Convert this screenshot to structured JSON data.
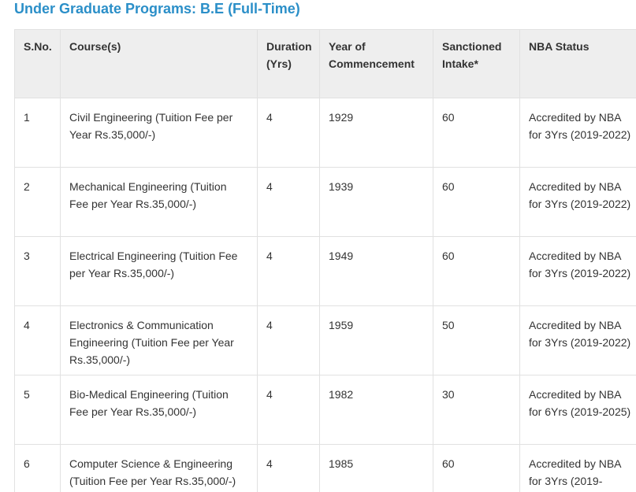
{
  "page": {
    "title": "Under Graduate Programs: B.E (Full-Time)"
  },
  "table": {
    "headers": [
      "S.No.",
      "Course(s)",
      "Duration (Yrs)",
      "Year of Commencement",
      "Sanctioned Intake*",
      "NBA Status"
    ],
    "rows": [
      {
        "sno": "1",
        "course": "Civil Engineering (Tuition Fee per Year Rs.35,000/-)",
        "duration": "4",
        "year": "1929",
        "intake": "60",
        "nba": "Accredited by NBA for 3Yrs (2019-2022)"
      },
      {
        "sno": "2",
        "course": "Mechanical Engineering (Tuition Fee per Year Rs.35,000/-)",
        "duration": "4",
        "year": "1939",
        "intake": "60",
        "nba": "Accredited by NBA for 3Yrs (2019-2022)"
      },
      {
        "sno": "3",
        "course": "Electrical Engineering (Tuition Fee per Year Rs.35,000/-)",
        "duration": "4",
        "year": "1949",
        "intake": "60",
        "nba": "Accredited by NBA for 3Yrs (2019-2022)"
      },
      {
        "sno": "4",
        "course": "Electronics & Communication Engineering (Tuition Fee per Year Rs.35,000/-)",
        "duration": "4",
        "year": "1959",
        "intake": "50",
        "nba": "Accredited by NBA for 3Yrs (2019-2022)"
      },
      {
        "sno": "5",
        "course": "Bio-Medical Engineering (Tuition Fee per Year Rs.35,000/-)",
        "duration": "4",
        "year": "1982",
        "intake": "30",
        "nba": "Accredited by NBA for 6Yrs (2019-2025)"
      },
      {
        "sno": "6",
        "course": "Computer Science & Engineering (Tuition Fee per Year Rs.35,000/-)",
        "duration": "4",
        "year": "1985",
        "intake": "60",
        "nba": "Accredited by NBA for 3Yrs (2019-"
      }
    ]
  },
  "colors": {
    "title": "#2b8fc8",
    "header_bg": "#eeeeee",
    "border": "#e1e1e1",
    "text": "#333333"
  }
}
